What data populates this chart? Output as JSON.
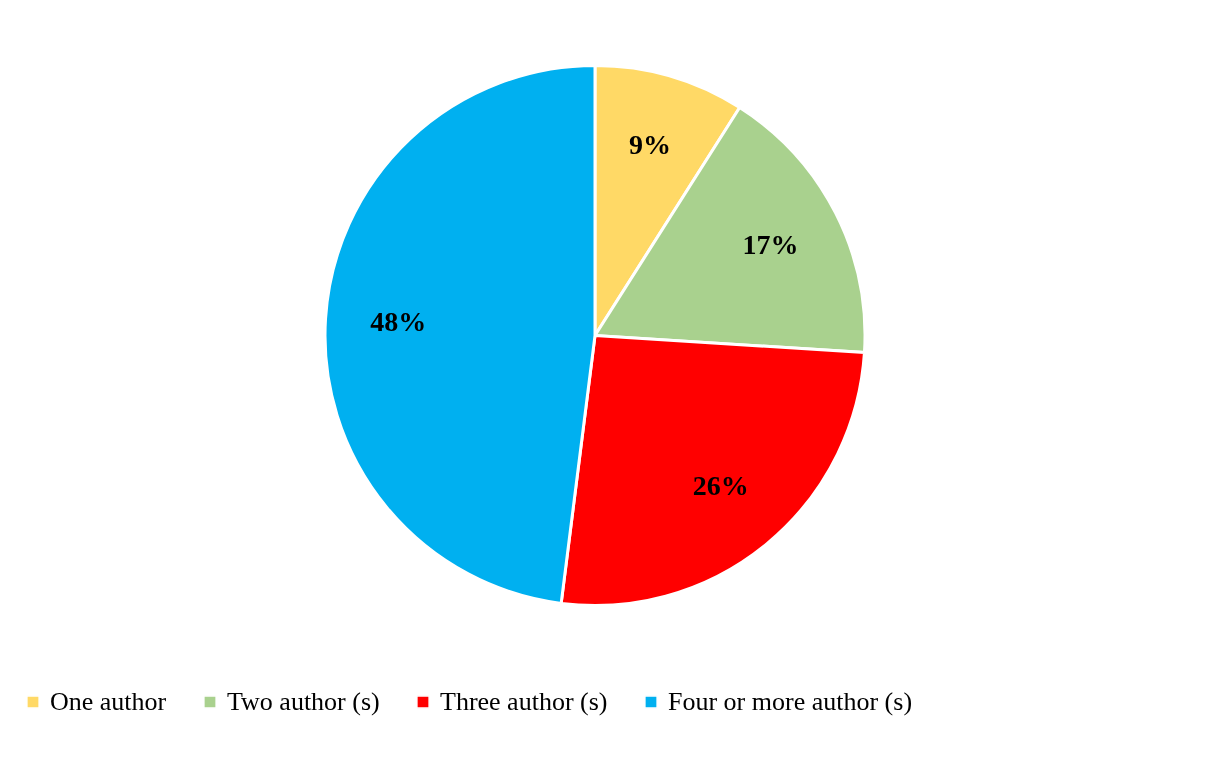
{
  "chart_data": {
    "type": "pie",
    "categories": [
      "One author",
      "Two author (s)",
      "Three author (s)",
      "Four or more author (s)"
    ],
    "values": [
      9,
      17,
      26,
      48
    ],
    "colors": [
      "#ffd966",
      "#a9d18e",
      "#ff0000",
      "#00b0f0"
    ],
    "value_labels": [
      "9%",
      "17%",
      "26%",
      "48%"
    ],
    "legend": "bottom"
  }
}
